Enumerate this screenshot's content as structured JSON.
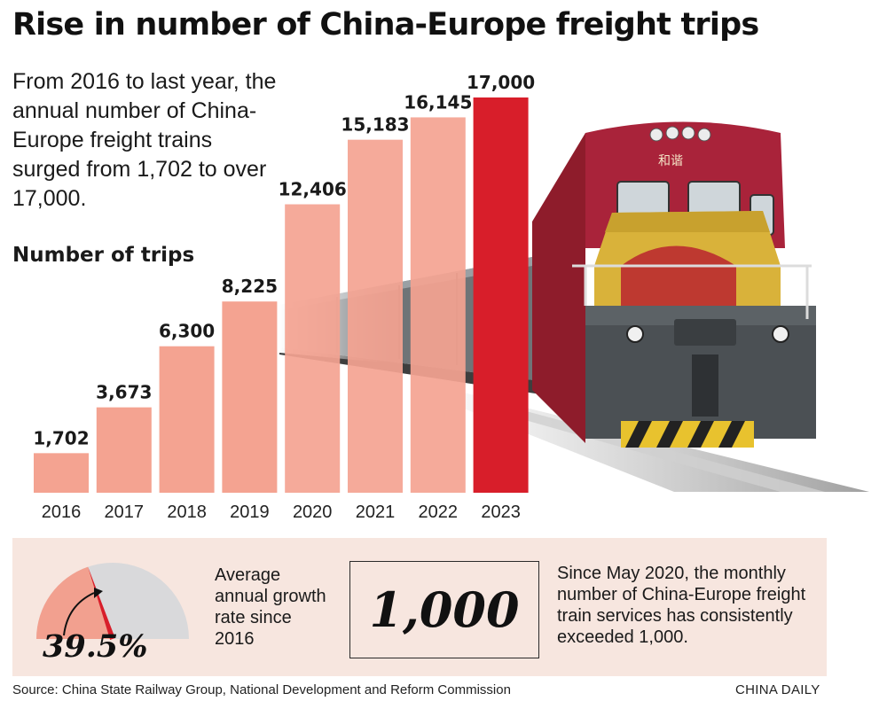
{
  "title": "Rise in number of China-Europe freight trips",
  "intro": "From 2016 to last year, the annual number of China-Europe freight trains surged from 1,702 to over 17,000.",
  "chart_label": "Number of trips",
  "chart_data": {
    "type": "bar",
    "title": "Rise in number of China-Europe freight trips",
    "ylabel": "Number of trips",
    "xlabel": "",
    "categories": [
      "2016",
      "2017",
      "2018",
      "2019",
      "2020",
      "2021",
      "2022",
      "2023"
    ],
    "values": [
      1702,
      3673,
      6300,
      8225,
      12406,
      15183,
      16145,
      17000
    ],
    "value_labels": [
      "1,702",
      "3,673",
      "6,300",
      "8,225",
      "12,406",
      "15,183",
      "16,145",
      "17,000"
    ],
    "ylim": [
      0,
      17000
    ],
    "grid": false,
    "colors": {
      "bar": "#f4a391",
      "highlight": "#d81e2a"
    },
    "highlight_index": 7
  },
  "gauge": {
    "value_percent": 39.5,
    "value_label": "39.5%",
    "label": "Average annual growth rate since 2016",
    "colors": {
      "fill": "#f2a08f",
      "track": "#d9d9db",
      "needle": "#d81e2a"
    }
  },
  "monthly": {
    "value": "1,000",
    "note": "Since May 2020, the monthly number of China-Europe freight train services has consistently exceeded 1,000."
  },
  "source": "Source: China State Railway Group, National Development and Reform Commission",
  "brand": "CHINA DAILY",
  "train_icon": "freight-locomotive-icon",
  "train_cab_text": "和谐"
}
